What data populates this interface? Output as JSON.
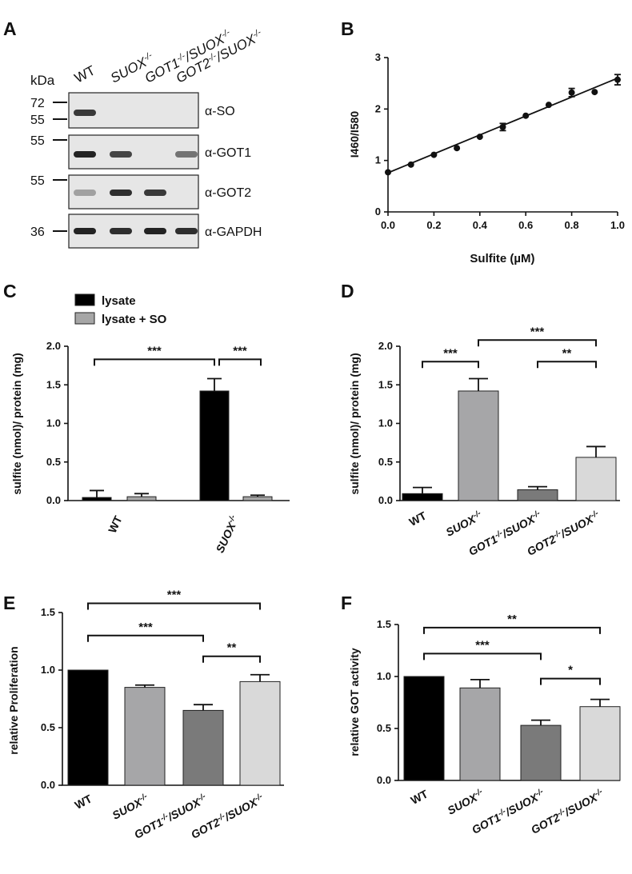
{
  "figure": {
    "panel_letters": [
      "A",
      "B",
      "C",
      "D",
      "E",
      "F"
    ]
  },
  "panel_a": {
    "lane_labels": [
      {
        "gene": "WT",
        "sup": ""
      },
      {
        "gene": "SUOX",
        "sup": "-/-"
      },
      {
        "gene": "GOT1",
        "sup": "-/-",
        "gene2": "/SUOX",
        "sup2": "-/-"
      },
      {
        "gene": "GOT2",
        "sup": "-/-",
        "gene2": "/SUOX",
        "sup2": "-/-"
      }
    ],
    "kda_label": "kDa",
    "blots": [
      {
        "antibody": "α-SO",
        "markers": [
          "72",
          "55"
        ],
        "intensities": [
          0.85,
          0,
          0,
          0
        ]
      },
      {
        "antibody": "α-GOT1",
        "markers": [
          "55"
        ],
        "intensities": [
          0.95,
          0.8,
          0,
          0.6
        ]
      },
      {
        "antibody": "α-GOT2",
        "markers": [
          "55"
        ],
        "intensities": [
          0.4,
          0.9,
          0.85,
          0
        ]
      },
      {
        "antibody": "α-GAPDH",
        "markers": [
          "36"
        ],
        "intensities": [
          0.95,
          0.9,
          0.95,
          0.9
        ]
      }
    ]
  },
  "chart_data": [
    {
      "panel": "B",
      "type": "scatter",
      "xlabel": "Sulfite (µM)",
      "ylabel": "I460/I580",
      "xlim": [
        0,
        1.0
      ],
      "ylim": [
        0,
        3
      ],
      "xticks": [
        "0.0",
        "0.2",
        "0.4",
        "0.6",
        "0.8",
        "1.0"
      ],
      "yticks": [
        "0",
        "1",
        "2",
        "3"
      ],
      "x": [
        0.0,
        0.1,
        0.2,
        0.3,
        0.4,
        0.5,
        0.6,
        0.7,
        0.8,
        0.9,
        1.0
      ],
      "y": [
        0.77,
        0.92,
        1.11,
        1.24,
        1.46,
        1.65,
        1.87,
        2.08,
        2.32,
        2.33,
        2.57
      ],
      "err": [
        0,
        0,
        0,
        0,
        0,
        0.07,
        0,
        0,
        0.08,
        0,
        0.1
      ],
      "fit": {
        "intercept": 0.76,
        "slope": 1.84
      }
    },
    {
      "panel": "C",
      "type": "bar",
      "ylabel": "sulfite (nmol)/ protein (mg)",
      "ylim": [
        0,
        2.0
      ],
      "yticks": [
        "0.0",
        "0.5",
        "1.0",
        "1.5",
        "2.0"
      ],
      "categories": [
        {
          "gene": "WT",
          "sup": ""
        },
        {
          "gene": "SUOX",
          "sup": "-/-"
        }
      ],
      "legend": [
        "lysate",
        "lysate + SO"
      ],
      "colors": [
        "#000000",
        "#a6a6a6"
      ],
      "series": [
        {
          "name": "lysate",
          "values": [
            0.04,
            1.42
          ],
          "err": [
            0.09,
            0.16
          ]
        },
        {
          "name": "lysate + SO",
          "values": [
            0.05,
            0.05
          ],
          "err": [
            0.04,
            0.02
          ]
        }
      ],
      "significance": [
        {
          "label": "***",
          "from": "WT-lysate",
          "to": "SUOX-lysate",
          "y": 1.83
        },
        {
          "label": "***",
          "from": "SUOX-lysate",
          "to": "SUOX-lysate+SO",
          "y": 1.83
        }
      ]
    },
    {
      "panel": "D",
      "type": "bar",
      "ylabel": "sulfite (nmol)/ protein (mg)",
      "ylim": [
        0,
        2.0
      ],
      "yticks": [
        "0.0",
        "0.5",
        "1.0",
        "1.5",
        "2.0"
      ],
      "categories": [
        {
          "gene": "WT",
          "sup": ""
        },
        {
          "gene": "SUOX",
          "sup": "-/-"
        },
        {
          "gene": "GOT1",
          "sup": "-/-",
          "gene2": "/SUOX",
          "sup2": "-/-"
        },
        {
          "gene": "GOT2",
          "sup": "-/-",
          "gene2": "/SUOX",
          "sup2": "-/-"
        }
      ],
      "values": [
        0.09,
        1.42,
        0.14,
        0.56
      ],
      "err": [
        0.08,
        0.16,
        0.04,
        0.14
      ],
      "colors": [
        "#000000",
        "#a6a6a8",
        "#7a7a7a",
        "#d9d9d9"
      ],
      "significance": [
        {
          "label": "***",
          "from": 0,
          "to": 1,
          "y": 1.8
        },
        {
          "label": "***",
          "from": 1,
          "to": 3,
          "y": 2.08
        },
        {
          "label": "**",
          "from": 2,
          "to": 3,
          "y": 1.8
        }
      ]
    },
    {
      "panel": "E",
      "type": "bar",
      "ylabel": "relative Proliferation",
      "ylim": [
        0,
        1.5
      ],
      "yticks": [
        "0.0",
        "0.5",
        "1.0",
        "1.5"
      ],
      "categories": [
        {
          "gene": "WT",
          "sup": ""
        },
        {
          "gene": "SUOX",
          "sup": "-/-"
        },
        {
          "gene": "GOT1",
          "sup": "-/-",
          "gene2": "/SUOX",
          "sup2": "-/-"
        },
        {
          "gene": "GOT2",
          "sup": "-/-",
          "gene2": "/SUOX",
          "sup2": "-/-"
        }
      ],
      "values": [
        1.0,
        0.85,
        0.65,
        0.9
      ],
      "err": [
        0,
        0.02,
        0.05,
        0.06
      ],
      "colors": [
        "#000000",
        "#a6a6a8",
        "#7a7a7a",
        "#d9d9d9"
      ],
      "significance": [
        {
          "label": "***",
          "from": 0,
          "to": 2,
          "y": 1.3
        },
        {
          "label": "***",
          "from": 0,
          "to": 3,
          "y": 1.58
        },
        {
          "label": "**",
          "from": 2,
          "to": 3,
          "y": 1.12
        }
      ]
    },
    {
      "panel": "F",
      "type": "bar",
      "ylabel": "relative GOT activity",
      "ylim": [
        0,
        1.5
      ],
      "yticks": [
        "0.0",
        "0.5",
        "1.0",
        "1.5"
      ],
      "categories": [
        {
          "gene": "WT",
          "sup": ""
        },
        {
          "gene": "SUOX",
          "sup": "-/-"
        },
        {
          "gene": "GOT1",
          "sup": "-/-",
          "gene2": "/SUOX",
          "sup2": "-/-"
        },
        {
          "gene": "GOT2",
          "sup": "-/-",
          "gene2": "/SUOX",
          "sup2": "-/-"
        }
      ],
      "values": [
        1.0,
        0.89,
        0.53,
        0.71
      ],
      "err": [
        0,
        0.08,
        0.05,
        0.07
      ],
      "colors": [
        "#000000",
        "#a6a6a8",
        "#7a7a7a",
        "#d9d9d9"
      ],
      "significance": [
        {
          "label": "***",
          "from": 0,
          "to": 2,
          "y": 1.22
        },
        {
          "label": "**",
          "from": 0,
          "to": 3,
          "y": 1.47
        },
        {
          "label": "*",
          "from": 2,
          "to": 3,
          "y": 0.98
        }
      ]
    }
  ]
}
